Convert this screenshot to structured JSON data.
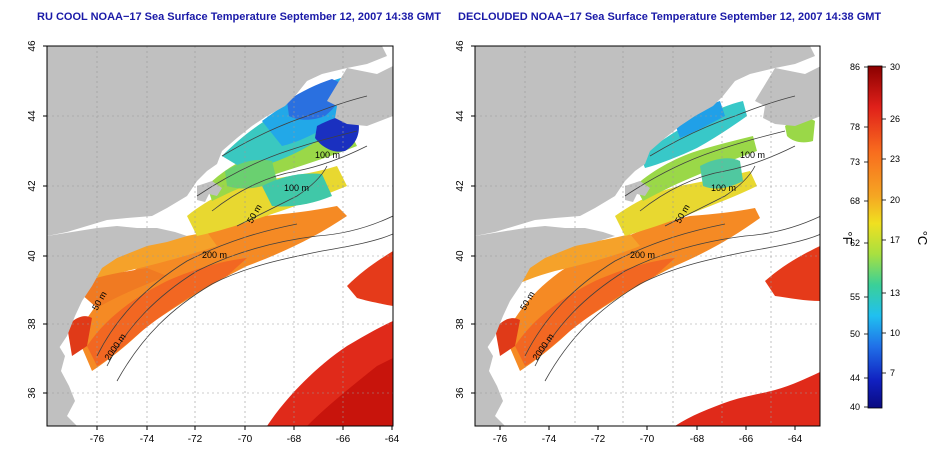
{
  "titles": {
    "left": "RU COOL NOAA−17 Sea Surface Temperature September 12, 2007 14:38 GMT",
    "right": "DECLOUDED NOAA−17 Sea Surface Temperature September 12, 2007 14:38 GMT"
  },
  "axes": {
    "lon_ticks": [
      "-76",
      "-74",
      "-72",
      "-70",
      "-68",
      "-66",
      "-64"
    ],
    "lat_ticks": [
      "46",
      "44",
      "42",
      "40",
      "38",
      "36"
    ]
  },
  "contour_labels": [
    "100 m",
    "100 m",
    "50 m",
    "200 m",
    "50 m",
    "2000 m"
  ],
  "colorbar": {
    "fahrenheit_unit": "°F",
    "celsius_unit": "°C",
    "fahrenheit_ticks": [
      "86",
      "78",
      "73",
      "68",
      "62",
      "55",
      "50",
      "44",
      "40"
    ],
    "celsius_ticks": [
      "30",
      "26",
      "23",
      "20",
      "17",
      "13",
      "10",
      "7"
    ],
    "colors": [
      "#8b0000",
      "#e0201a",
      "#f86c1e",
      "#f5a623",
      "#f0e020",
      "#a8e040",
      "#3ad098",
      "#20c0f0",
      "#2070e8",
      "#1020c0",
      "#0a0a80"
    ]
  },
  "colors": {
    "land": "#c0c0c0",
    "ocean_missing": "#ffffff",
    "title": "#1a1aa8"
  }
}
